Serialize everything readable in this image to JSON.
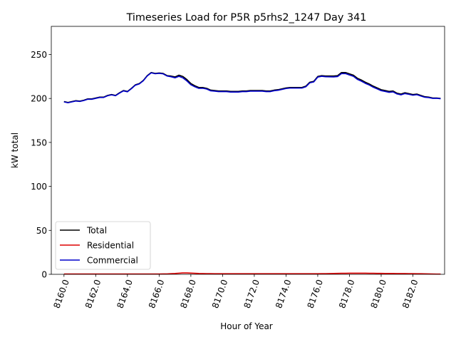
{
  "chart_data": {
    "type": "line",
    "title": "Timeseries Load for P5R p5rhs2_1247  Day 341",
    "xlabel": "Hour of Year",
    "ylabel": "kW total",
    "xlim": [
      8159.2,
      8184.0
    ],
    "ylim": [
      0,
      282
    ],
    "xticks": [
      8160,
      8162,
      8164,
      8166,
      8168,
      8170,
      8172,
      8174,
      8176,
      8178,
      8180,
      8182
    ],
    "xtick_labels": [
      "8160.0",
      "8162.0",
      "8164.0",
      "8166.0",
      "8168.0",
      "8170.0",
      "8172.0",
      "8174.0",
      "8176.0",
      "8178.0",
      "8180.0",
      "8182.0"
    ],
    "yticks": [
      0,
      50,
      100,
      150,
      200,
      250
    ],
    "ytick_labels": [
      "0",
      "50",
      "100",
      "150",
      "200",
      "250"
    ],
    "grid": false,
    "legend": {
      "position": "lower-left"
    },
    "x": [
      8160.0,
      8160.25,
      8160.5,
      8160.75,
      8161.0,
      8161.25,
      8161.5,
      8161.75,
      8162.0,
      8162.25,
      8162.5,
      8162.75,
      8163.0,
      8163.25,
      8163.5,
      8163.75,
      8164.0,
      8164.25,
      8164.5,
      8164.75,
      8165.0,
      8165.25,
      8165.5,
      8165.75,
      8166.0,
      8166.25,
      8166.5,
      8166.75,
      8167.0,
      8167.25,
      8167.5,
      8167.75,
      8168.0,
      8168.25,
      8168.5,
      8168.75,
      8169.0,
      8169.25,
      8169.5,
      8169.75,
      8170.0,
      8170.25,
      8170.5,
      8170.75,
      8171.0,
      8171.25,
      8171.5,
      8171.75,
      8172.0,
      8172.25,
      8172.5,
      8172.75,
      8173.0,
      8173.25,
      8173.5,
      8173.75,
      8174.0,
      8174.25,
      8174.5,
      8174.75,
      8175.0,
      8175.25,
      8175.5,
      8175.75,
      8176.0,
      8176.25,
      8176.5,
      8176.75,
      8177.0,
      8177.25,
      8177.5,
      8177.75,
      8178.0,
      8178.25,
      8178.5,
      8178.75,
      8179.0,
      8179.25,
      8179.5,
      8179.75,
      8180.0,
      8180.25,
      8180.5,
      8180.75,
      8181.0,
      8181.25,
      8181.5,
      8181.75,
      8182.0,
      8182.25,
      8182.5,
      8182.75,
      8183.0,
      8183.25,
      8183.5,
      8183.75
    ],
    "series": [
      {
        "name": "Total",
        "color": "#000000",
        "values": [
          196.5,
          195.5,
          196.5,
          197.5,
          197.0,
          198.0,
          199.5,
          199.5,
          200.5,
          201.5,
          201.5,
          203.5,
          204.5,
          203.5,
          206.5,
          209.0,
          208.0,
          211.5,
          215.5,
          217.0,
          220.5,
          226.0,
          229.5,
          228.5,
          229.0,
          228.5,
          226.0,
          225.5,
          224.5,
          226.5,
          225.0,
          221.5,
          217.0,
          214.5,
          212.5,
          212.5,
          211.5,
          209.5,
          209.0,
          208.5,
          208.5,
          208.5,
          208.0,
          208.0,
          208.0,
          208.5,
          208.5,
          209.0,
          209.0,
          209.0,
          209.0,
          208.5,
          208.5,
          209.5,
          210.0,
          211.0,
          212.0,
          212.5,
          212.5,
          212.5,
          212.5,
          214.0,
          218.5,
          219.5,
          225.0,
          226.0,
          225.5,
          225.5,
          225.5,
          226.0,
          229.5,
          229.5,
          228.0,
          226.5,
          223.0,
          221.0,
          218.5,
          216.5,
          214.0,
          212.0,
          210.0,
          209.0,
          208.0,
          208.5,
          206.0,
          205.0,
          206.5,
          205.5,
          204.5,
          205.0,
          203.5,
          202.0,
          201.5,
          200.5,
          200.5,
          200.0
        ]
      },
      {
        "name": "Residential",
        "color": "#dd0000",
        "values": [
          0.4,
          0.4,
          0.4,
          0.4,
          0.4,
          0.4,
          0.4,
          0.4,
          0.4,
          0.4,
          0.4,
          0.4,
          0.4,
          0.4,
          0.4,
          0.4,
          0.4,
          0.4,
          0.4,
          0.4,
          0.4,
          0.4,
          0.4,
          0.4,
          0.4,
          0.5,
          0.5,
          0.8,
          1.0,
          1.3,
          1.6,
          1.6,
          1.4,
          1.2,
          1.0,
          0.9,
          0.8,
          0.8,
          0.7,
          0.7,
          0.7,
          0.7,
          0.7,
          0.7,
          0.7,
          0.7,
          0.7,
          0.7,
          0.7,
          0.7,
          0.7,
          0.7,
          0.7,
          0.7,
          0.7,
          0.7,
          0.7,
          0.7,
          0.7,
          0.7,
          0.7,
          0.7,
          0.7,
          0.7,
          0.7,
          0.8,
          0.8,
          0.9,
          1.0,
          1.1,
          1.2,
          1.2,
          1.3,
          1.3,
          1.3,
          1.3,
          1.3,
          1.2,
          1.2,
          1.1,
          1.1,
          1.0,
          1.0,
          1.0,
          0.9,
          0.9,
          0.9,
          0.8,
          0.8,
          0.7,
          0.7,
          0.6,
          0.5,
          0.4,
          0.3,
          0.3
        ]
      },
      {
        "name": "Commercial",
        "color": "#0000cc",
        "values": [
          196.1,
          195.1,
          196.1,
          197.1,
          196.6,
          197.6,
          199.1,
          199.1,
          200.1,
          201.1,
          201.1,
          203.1,
          204.1,
          203.1,
          206.1,
          208.6,
          207.6,
          211.1,
          215.1,
          216.6,
          220.1,
          225.6,
          229.1,
          228.1,
          228.6,
          228.0,
          225.5,
          224.7,
          223.5,
          225.2,
          223.4,
          219.9,
          215.6,
          213.3,
          211.5,
          211.6,
          210.7,
          208.7,
          208.3,
          207.8,
          207.8,
          207.8,
          207.3,
          207.3,
          207.3,
          207.8,
          207.8,
          208.3,
          208.3,
          208.3,
          208.3,
          207.8,
          207.8,
          208.8,
          209.3,
          210.3,
          211.3,
          211.8,
          211.8,
          211.8,
          211.8,
          213.3,
          217.8,
          218.8,
          224.3,
          225.2,
          224.7,
          224.6,
          224.5,
          224.9,
          228.3,
          228.3,
          226.7,
          225.2,
          221.7,
          219.7,
          217.2,
          215.3,
          212.8,
          210.9,
          208.9,
          208.0,
          207.0,
          207.5,
          205.1,
          204.1,
          205.6,
          204.7,
          203.7,
          204.3,
          202.8,
          201.4,
          201.0,
          200.1,
          200.2,
          199.7
        ]
      }
    ]
  }
}
